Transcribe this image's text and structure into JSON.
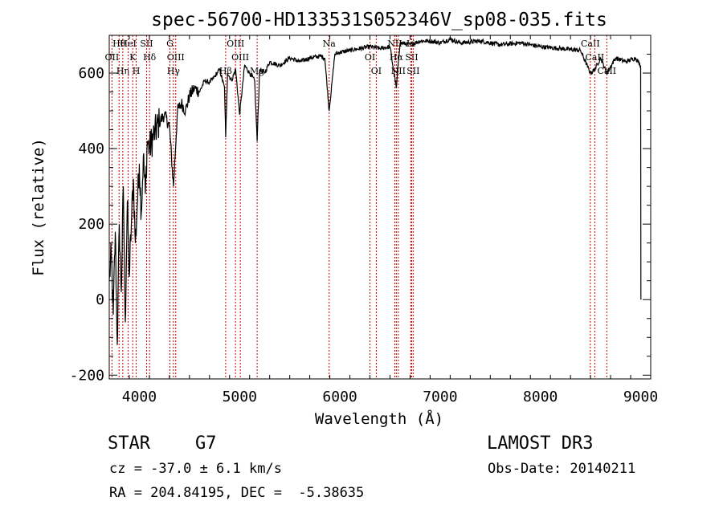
{
  "info": {
    "object_class": "STAR",
    "subclass": "G7",
    "survey": "LAMOST DR3",
    "redshift": "cz = -37.0 ± 6.1 km/s",
    "obs_date": "Obs-Date: 20140211",
    "coords": "RA = 204.84195, DEC =  -5.38635"
  },
  "chart_data": {
    "type": "line",
    "title": "spec-56700-HD133531S052346V_sp08-035.fits",
    "xlabel": "Wavelength (Å)",
    "ylabel": "Flux (relative)",
    "xlim": [
      3700,
      9100
    ],
    "ylim": [
      -210,
      700
    ],
    "x_ticks": [
      4000,
      5000,
      6000,
      7000,
      8000,
      9000
    ],
    "y_ticks": [
      -200,
      0,
      200,
      400,
      600
    ],
    "line_color": "#000000",
    "marker_color": "#cc0000",
    "spectrum": {
      "x": [
        3700,
        3720,
        3740,
        3760,
        3780,
        3800,
        3820,
        3840,
        3860,
        3880,
        3900,
        3920,
        3940,
        3960,
        3980,
        4000,
        4020,
        4040,
        4060,
        4080,
        4100,
        4150,
        4200,
        4250,
        4300,
        4340,
        4380,
        4420,
        4460,
        4500,
        4550,
        4600,
        4650,
        4700,
        4750,
        4800,
        4850,
        4861,
        4880,
        4920,
        4960,
        5000,
        5050,
        5100,
        5150,
        5175,
        5200,
        5250,
        5300,
        5400,
        5500,
        5600,
        5700,
        5800,
        5850,
        5893,
        5950,
        6000,
        6100,
        6200,
        6300,
        6400,
        6500,
        6563,
        6600,
        6700,
        6800,
        6900,
        7000,
        7100,
        7200,
        7400,
        7600,
        7800,
        8000,
        8200,
        8400,
        8498,
        8542,
        8600,
        8662,
        8750,
        8850,
        8950,
        9000,
        9002
      ],
      "y": [
        50,
        120,
        -40,
        180,
        -120,
        200,
        20,
        300,
        -60,
        260,
        60,
        200,
        320,
        150,
        250,
        360,
        230,
        380,
        280,
        420,
        400,
        440,
        470,
        490,
        460,
        300,
        500,
        520,
        500,
        540,
        560,
        550,
        580,
        575,
        590,
        610,
        560,
        430,
        600,
        580,
        610,
        490,
        620,
        600,
        580,
        420,
        610,
        600,
        630,
        620,
        640,
        630,
        640,
        645,
        640,
        500,
        650,
        655,
        660,
        665,
        670,
        665,
        670,
        560,
        680,
        675,
        685,
        685,
        680,
        690,
        680,
        685,
        675,
        680,
        670,
        665,
        660,
        600,
        610,
        640,
        600,
        640,
        630,
        640,
        620,
        0
      ]
    },
    "line_markers": [
      {
        "name": "Hθ",
        "wavelength": 3798
      },
      {
        "name": "OII",
        "wavelength": 3727
      },
      {
        "name": "Hη",
        "wavelength": 3835
      },
      {
        "name": "HeI",
        "wavelength": 3889
      },
      {
        "name": "K",
        "wavelength": 3934
      },
      {
        "name": "H",
        "wavelength": 3969
      },
      {
        "name": "SII",
        "wavelength": 4072
      },
      {
        "name": "Hδ",
        "wavelength": 4102
      },
      {
        "name": "Hγ",
        "wavelength": 4340
      },
      {
        "name": "G",
        "wavelength": 4305
      },
      {
        "name": "OIII",
        "wavelength": 4363
      },
      {
        "name": "Hβ",
        "wavelength": 4861
      },
      {
        "name": "OIII",
        "wavelength": 4959
      },
      {
        "name": "OIII",
        "wavelength": 5007
      },
      {
        "name": "Mg",
        "wavelength": 5175
      },
      {
        "name": "Na",
        "wavelength": 5893
      },
      {
        "name": "OI",
        "wavelength": 6300
      },
      {
        "name": "OI",
        "wavelength": 6363
      },
      {
        "name": "NII",
        "wavelength": 6548
      },
      {
        "name": "Hα",
        "wavelength": 6563
      },
      {
        "name": "NII",
        "wavelength": 6583
      },
      {
        "name": "Li",
        "wavelength": 6707
      },
      {
        "name": "SII",
        "wavelength": 6716
      },
      {
        "name": "SII",
        "wavelength": 6731
      },
      {
        "name": "CaII",
        "wavelength": 8498
      },
      {
        "name": "CaII",
        "wavelength": 8542
      },
      {
        "name": "CaII",
        "wavelength": 8662
      }
    ]
  }
}
